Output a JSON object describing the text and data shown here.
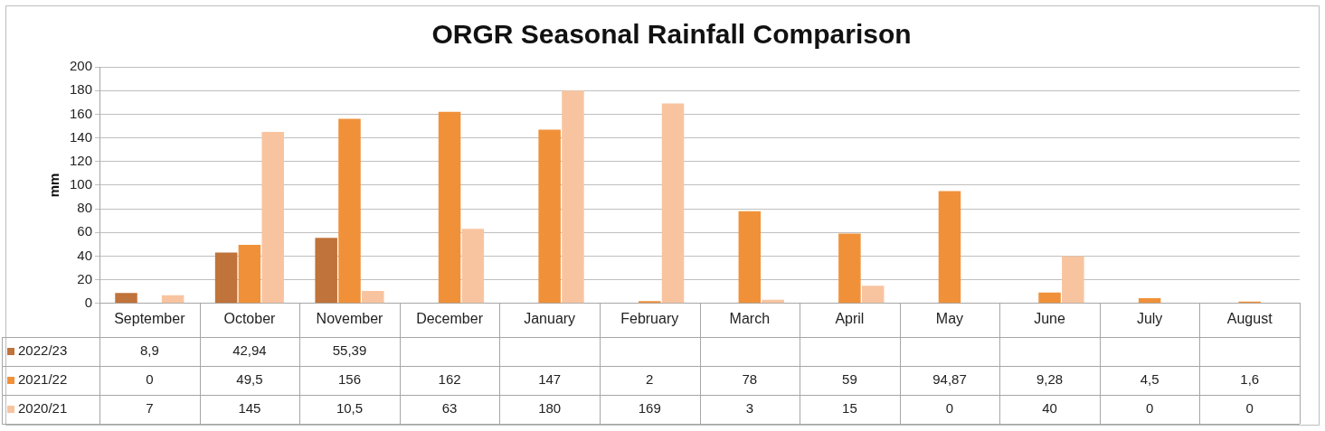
{
  "chart_data": {
    "type": "bar",
    "title": "ORGR Seasonal Rainfall Comparison",
    "ylabel": "mm",
    "categories": [
      "September",
      "October",
      "November",
      "December",
      "January",
      "February",
      "March",
      "April",
      "May",
      "June",
      "July",
      "August"
    ],
    "series": [
      {
        "name": "2022/23",
        "color": "#c0733a",
        "values": [
          8.9,
          42.94,
          55.39,
          null,
          null,
          null,
          null,
          null,
          null,
          null,
          null,
          null
        ],
        "value_labels": [
          "8,9",
          "42,94",
          "55,39",
          null,
          null,
          null,
          null,
          null,
          null,
          null,
          null,
          null
        ]
      },
      {
        "name": "2021/22",
        "color": "#f0913a",
        "values": [
          0,
          49.5,
          156,
          162,
          147,
          2,
          78,
          59,
          94.87,
          9.28,
          4.5,
          1.6
        ],
        "value_labels": [
          "0",
          "49,5",
          "156",
          "162",
          "147",
          "2",
          "78",
          "59",
          "94,87",
          "9,28",
          "4,5",
          "1,6"
        ]
      },
      {
        "name": "2020/21",
        "color": "#f8c4a0",
        "values": [
          7,
          145,
          10.5,
          63,
          180,
          169,
          3,
          15,
          0,
          40,
          0,
          0
        ],
        "value_labels": [
          "7",
          "145",
          "10,5",
          "63",
          "180",
          "169",
          "3",
          "15",
          "0",
          "40",
          "0",
          "0"
        ]
      }
    ],
    "ylim": [
      0,
      200
    ],
    "yticks": [
      0,
      20,
      40,
      60,
      80,
      100,
      120,
      140,
      160,
      180,
      200
    ],
    "grid": "y",
    "legend": "bottom left"
  }
}
